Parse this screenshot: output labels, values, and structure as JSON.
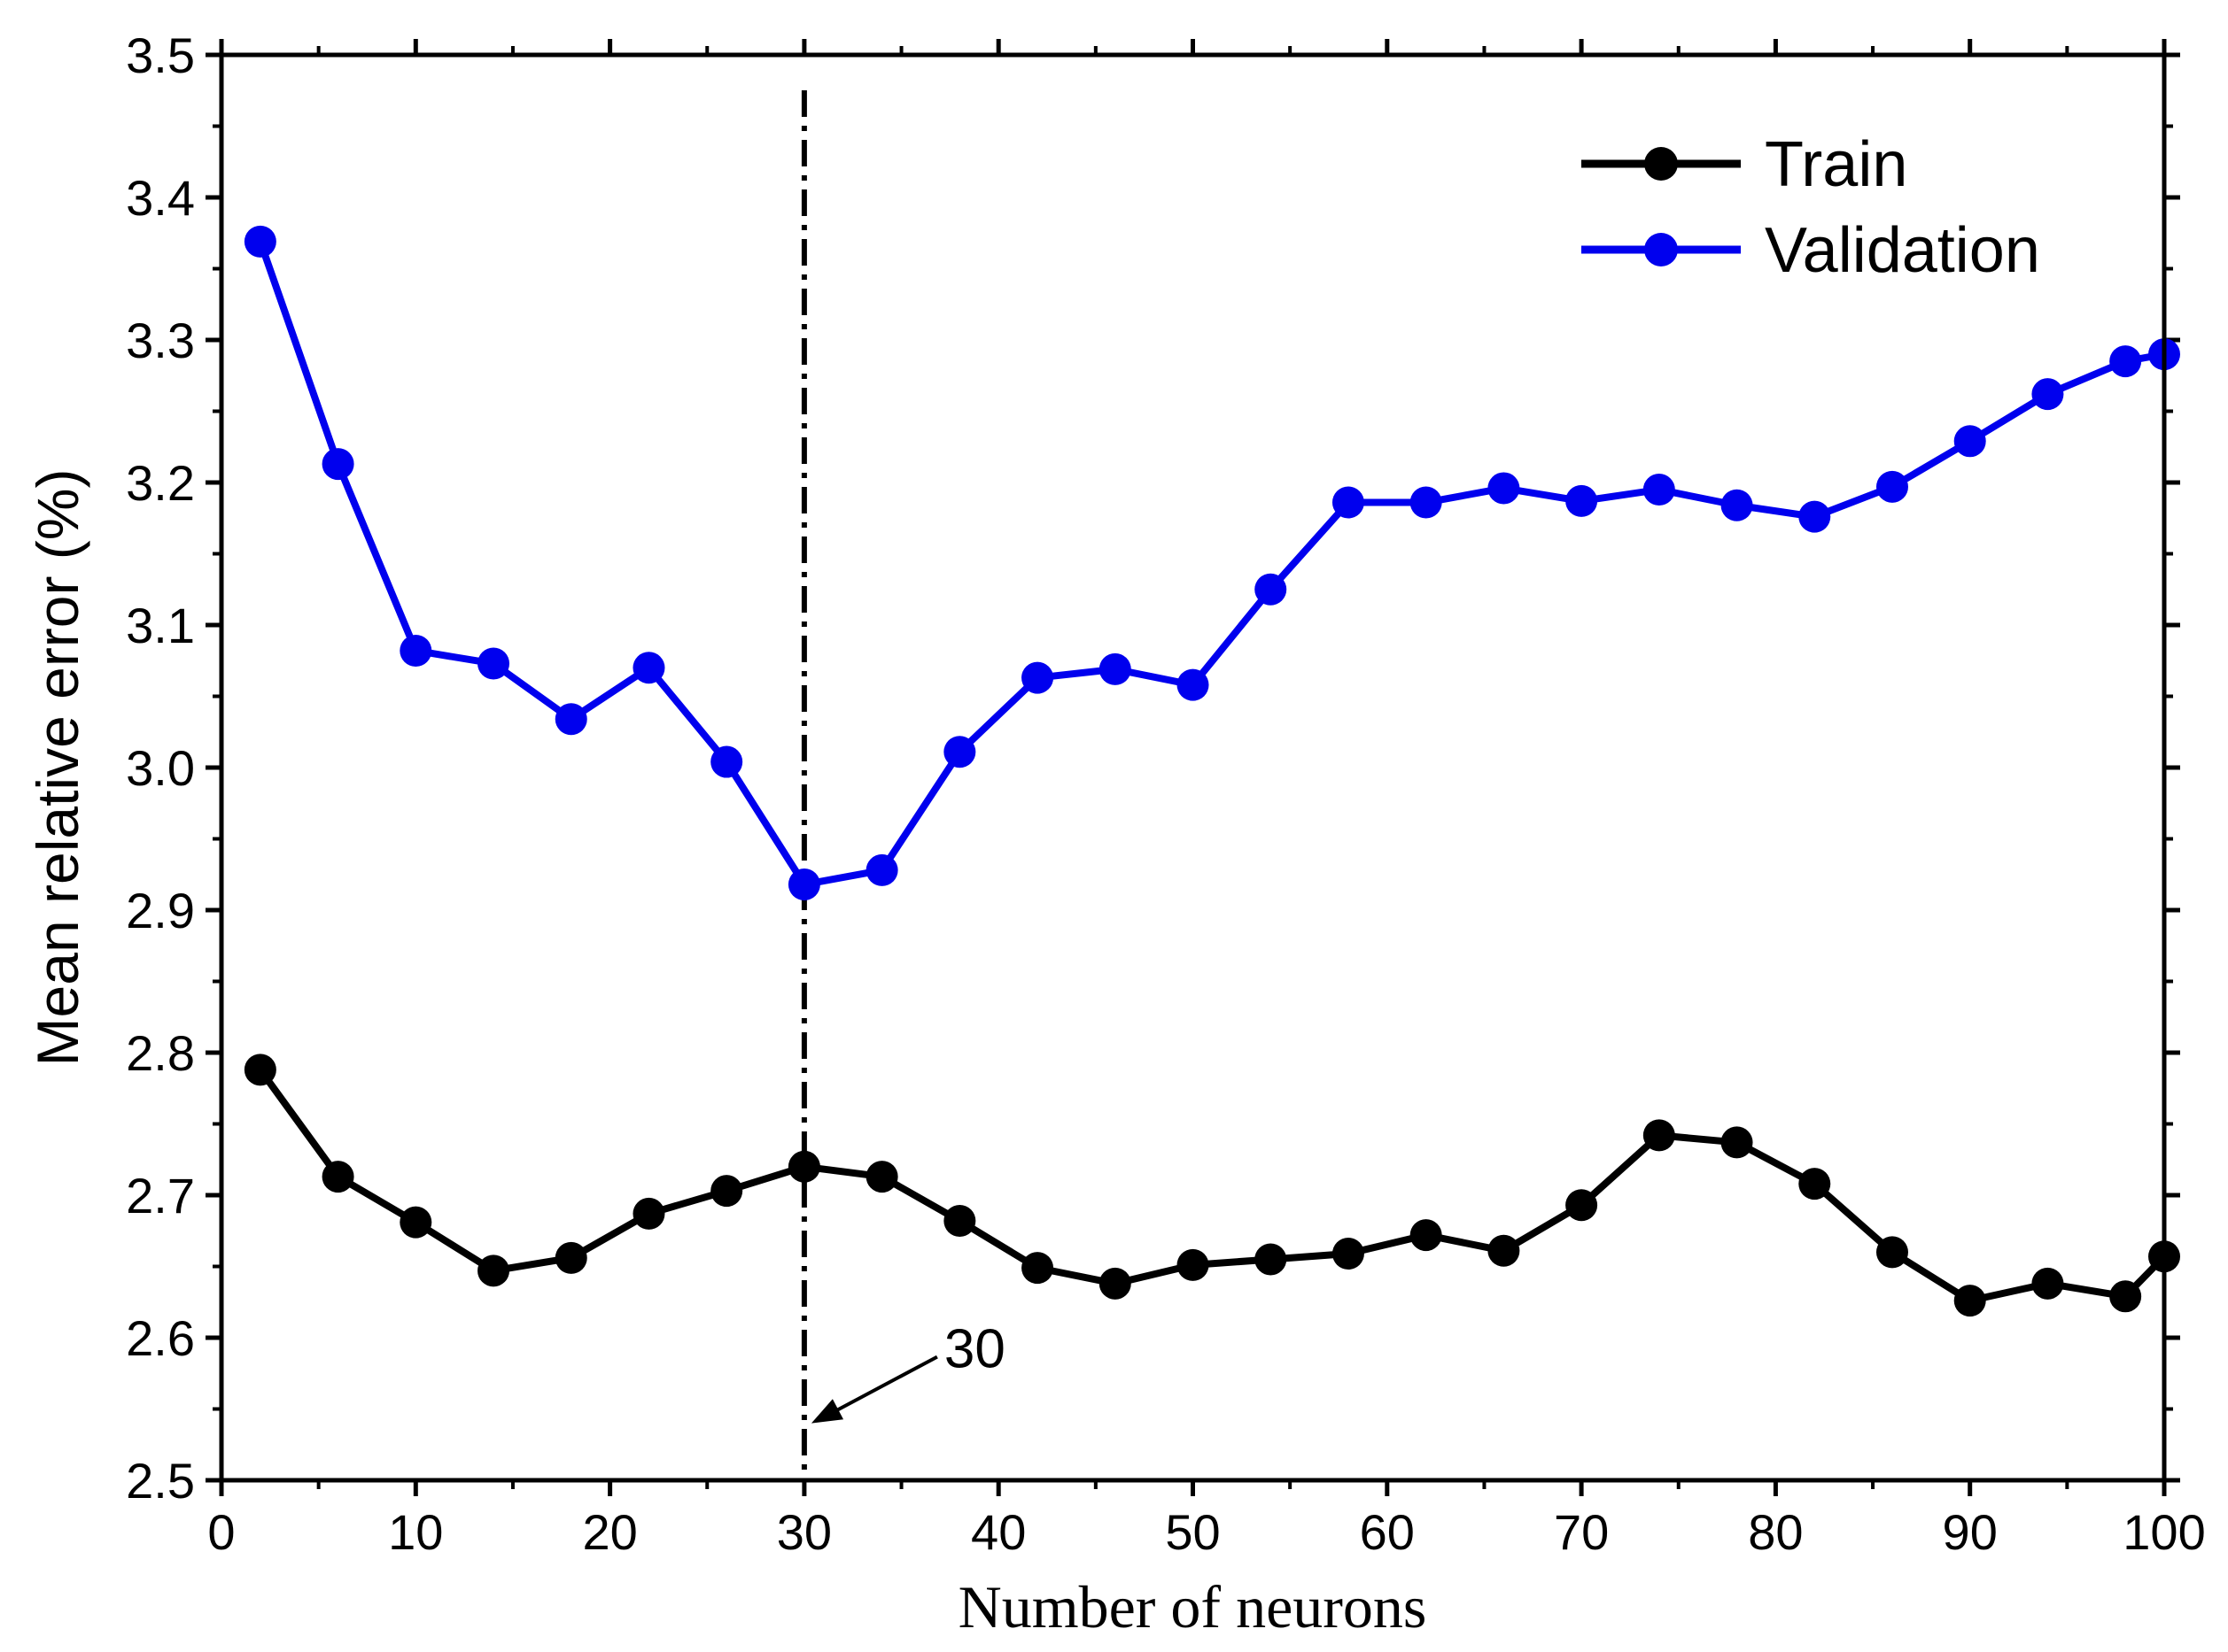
{
  "chart_data": {
    "type": "line",
    "title": "",
    "xlabel": "Number of neurons",
    "ylabel": "Mean relative error (%)",
    "xlim": [
      0,
      100
    ],
    "ylim": [
      2.5,
      3.5
    ],
    "x_ticks": [
      0,
      10,
      20,
      30,
      40,
      50,
      60,
      70,
      80,
      90,
      100
    ],
    "x_tick_labels": [
      "0",
      "10",
      "20",
      "30",
      "40",
      "50",
      "60",
      "70",
      "80",
      "90",
      "100"
    ],
    "y_ticks": [
      2.5,
      2.6,
      2.7,
      2.8,
      2.9,
      3.0,
      3.1,
      3.2,
      3.3,
      3.4,
      3.5
    ],
    "y_tick_labels": [
      "2.5",
      "2.6",
      "2.7",
      "2.8",
      "2.9",
      "3.0",
      "3.1",
      "3.2",
      "3.3",
      "3.4",
      "3.5"
    ],
    "grid": false,
    "legend_position": "top-right",
    "x": [
      2,
      6,
      10,
      14,
      18,
      22,
      26,
      30,
      34,
      38,
      42,
      46,
      50,
      54,
      58,
      62,
      66,
      70,
      74,
      78,
      82,
      86,
      90,
      94,
      98,
      100
    ],
    "series": [
      {
        "name": "Train",
        "color": "#000000",
        "values": [
          2.788,
          2.713,
          2.681,
          2.647,
          2.656,
          2.687,
          2.703,
          2.72,
          2.713,
          2.682,
          2.649,
          2.638,
          2.651,
          2.655,
          2.659,
          2.672,
          2.661,
          2.693,
          2.742,
          2.737,
          2.708,
          2.66,
          2.626,
          2.638,
          2.629,
          2.657
        ]
      },
      {
        "name": "Validation",
        "color": "#0000ee",
        "values": [
          3.369,
          3.213,
          3.082,
          3.073,
          3.034,
          3.07,
          3.004,
          2.918,
          2.928,
          3.011,
          3.063,
          3.069,
          3.058,
          3.125,
          3.186,
          3.186,
          3.196,
          3.187,
          3.195,
          3.184,
          3.176,
          3.197,
          3.229,
          3.262,
          3.285,
          3.29
        ]
      }
    ],
    "vline": {
      "x": 30
    },
    "annotation": {
      "text": "30",
      "x": 30,
      "y": 2.54
    }
  }
}
